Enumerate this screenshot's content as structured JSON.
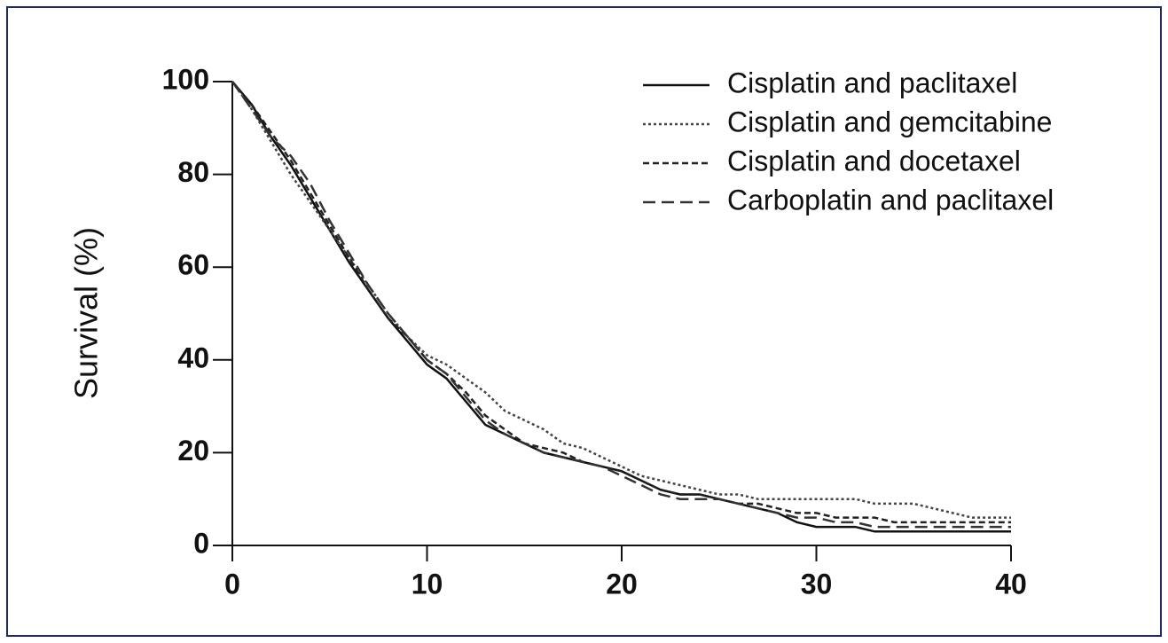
{
  "chart_data": {
    "type": "line",
    "ylabel": "Survival (%)",
    "x": [
      0,
      1,
      2,
      3,
      4,
      5,
      6,
      7,
      8,
      9,
      10,
      11,
      12,
      13,
      14,
      15,
      16,
      17,
      18,
      19,
      20,
      21,
      22,
      23,
      24,
      25,
      26,
      27,
      28,
      29,
      30,
      31,
      32,
      33,
      34,
      35,
      36,
      37,
      38,
      39,
      40
    ],
    "series": [
      {
        "name": "Cisplatin and paclitaxel",
        "color": "#111111",
        "dash": "none",
        "values": [
          100,
          95,
          88,
          82,
          75,
          68,
          61,
          55,
          49,
          44,
          39,
          36,
          31,
          26,
          24,
          22,
          20,
          19,
          18,
          17,
          16,
          14,
          12,
          11,
          11,
          10,
          9,
          8,
          7,
          5,
          4,
          4,
          4,
          3,
          3,
          3,
          3,
          3,
          3,
          3,
          3
        ]
      },
      {
        "name": "Cisplatin and gemcitabine",
        "color": "#444444",
        "dash": "3,3",
        "values": [
          100,
          94,
          87,
          80,
          74,
          68,
          62,
          56,
          50,
          45,
          41,
          39,
          36,
          33,
          29,
          27,
          25,
          22,
          21,
          19,
          17,
          15,
          14,
          13,
          12,
          11,
          11,
          10,
          10,
          10,
          10,
          10,
          10,
          9,
          9,
          9,
          8,
          7,
          6,
          6,
          6
        ]
      },
      {
        "name": "Cisplatin and docetaxel",
        "color": "#222222",
        "dash": "7,4",
        "values": [
          100,
          95,
          89,
          83,
          76,
          69,
          62,
          55,
          49,
          45,
          40,
          37,
          33,
          28,
          25,
          22,
          21,
          20,
          18,
          17,
          16,
          14,
          12,
          11,
          11,
          10,
          9,
          9,
          8,
          7,
          7,
          6,
          6,
          6,
          5,
          5,
          5,
          5,
          5,
          5,
          5
        ]
      },
      {
        "name": "Carboplatin and paclitaxel",
        "color": "#333333",
        "dash": "14,7",
        "values": [
          100,
          94,
          88,
          84,
          78,
          70,
          63,
          56,
          50,
          45,
          40,
          37,
          32,
          27,
          24,
          22,
          20,
          19,
          18,
          17,
          15,
          13,
          11,
          10,
          10,
          10,
          9,
          8,
          7,
          6,
          6,
          5,
          5,
          4,
          4,
          4,
          4,
          4,
          4,
          4,
          4
        ]
      }
    ],
    "xlim": [
      0,
      40
    ],
    "xticks": [
      0,
      10,
      20,
      30,
      40
    ],
    "ylim": [
      0,
      100
    ],
    "yticks": [
      0,
      20,
      40,
      60,
      80,
      100
    ],
    "grid": false,
    "legend": "upper right"
  }
}
